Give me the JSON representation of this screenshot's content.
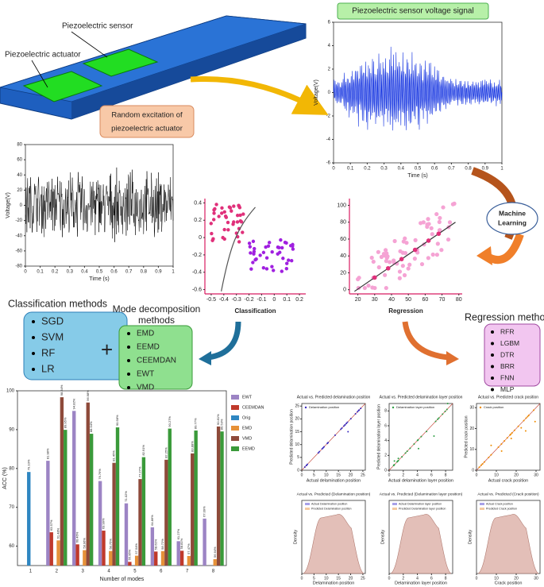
{
  "labels": {
    "sensor": "Piezoelectric sensor",
    "actuator": "Piezoelectric actuator",
    "excitation": [
      "Random excitation of",
      "piezoelectric actuator"
    ],
    "voltage_signal": "Piezoelectric sensor voltage signal",
    "ml": [
      "Machine",
      "Learning"
    ],
    "plus": "+"
  },
  "output_plot": {
    "xlabel": "Time (s)",
    "ylabel": "Voltage(V)",
    "xlim": [
      0,
      1
    ],
    "ylim": [
      -6,
      6
    ],
    "xticks": [
      0,
      0.1,
      0.2,
      0.3,
      0.4,
      0.5,
      0.6,
      0.7,
      0.8,
      0.9,
      1
    ],
    "yticks": [
      -6,
      -4,
      -2,
      0,
      2,
      4,
      6
    ]
  },
  "input_plot": {
    "xlabel": "Time (s)",
    "ylabel": "Voltage(V)",
    "xlim": [
      0,
      1
    ],
    "ylim": [
      -80,
      80
    ],
    "xticks": [
      0,
      0.1,
      0.2,
      0.3,
      0.4,
      0.5,
      0.6,
      0.7,
      0.8,
      0.9,
      1
    ],
    "yticks": [
      -80,
      -60,
      -40,
      -20,
      0,
      20,
      40,
      60,
      80
    ]
  },
  "classification_plot": {
    "title": "Classification",
    "xlim": [
      -0.55,
      0.25
    ],
    "ylim": [
      -0.65,
      0.45
    ],
    "xticks": [
      -0.5,
      -0.4,
      -0.3,
      -0.2,
      -0.1,
      0,
      0.1,
      0.2
    ],
    "yticks": [
      -0.6,
      -0.4,
      -0.2,
      0,
      0.2,
      0.4
    ]
  },
  "regression_plot": {
    "title": "Regression",
    "xlim": [
      15,
      82
    ],
    "ylim": [
      -5,
      108
    ],
    "xticks": [
      20,
      30,
      40,
      50,
      60,
      70,
      80
    ],
    "yticks": [
      0,
      20,
      40,
      60,
      80,
      100
    ]
  },
  "classification_methods": {
    "title": "Classification methods",
    "items": [
      "SGD",
      "SVM",
      "RF",
      "LR"
    ]
  },
  "mode_methods": {
    "title": [
      "Mode decomposition",
      "methods"
    ],
    "items": [
      "EMD",
      "EEMD",
      "CEEMDAN",
      "EWT",
      "VMD"
    ]
  },
  "regression_methods": {
    "title": "Regression methods",
    "items": [
      "RFR",
      "LGBM",
      "DTR",
      "BRR",
      "FNN",
      "MLP"
    ]
  },
  "chart_data": {
    "type": "bar",
    "xlabel": "Number of modes",
    "ylabel": "ACC (%)",
    "categories": [
      "1",
      "2",
      "3",
      "4",
      "5",
      "6",
      "7",
      "8"
    ],
    "ylim": [
      55,
      100
    ],
    "yticks": [
      60,
      70,
      80,
      90,
      100
    ],
    "legend": "top-right",
    "series": [
      {
        "name": "EWT",
        "color": "#9c84c4",
        "values": [
          null,
          81.98,
          94.82,
          76.76,
          71.02,
          64.86,
          61.27,
          67.09
        ],
        "value_labels": [
          null,
          "81.98%",
          "94.82%",
          "76.76%",
          "71.02%",
          "64.86%",
          "61.27%",
          "67.09%"
        ]
      },
      {
        "name": "CEEMDAN",
        "color": "#c0392b",
        "values": [
          null,
          63.57,
          60.46,
          63.99,
          55.95,
          58.61,
          58.81,
          null
        ],
        "value_labels": [
          null,
          "63.57%",
          "60.46%",
          "63.99%",
          "55.95%",
          "58.61%",
          "58.81%",
          null
        ]
      },
      {
        "name": "Orig",
        "color": "#2e86c1",
        "values": [
          79.1,
          null,
          null,
          null,
          null,
          null,
          null,
          null
        ],
        "value_labels": [
          "79.10%",
          null,
          null,
          null,
          null,
          null,
          null,
          null
        ]
      },
      {
        "name": "EMD",
        "color": "#e69138",
        "values": [
          null,
          61.48,
          58.96,
          58.75,
          57.54,
          58.72,
          57.47,
          56.64
        ],
        "value_labels": [
          null,
          "61.48%",
          "58.96%",
          "58.75%",
          "57.54%",
          "58.72%",
          "57.47%",
          "56.64%"
        ]
      },
      {
        "name": "VMD",
        "color": "#8e4a3a",
        "values": [
          null,
          98.34,
          96.98,
          81.45,
          77.27,
          82.25,
          83.88,
          90.81
        ],
        "value_labels": [
          null,
          "98.34%",
          "96.98%",
          "81.45%",
          "77.27%",
          "82.25%",
          "83.88%",
          "90.81%"
        ]
      },
      {
        "name": "EEMD",
        "color": "#3a9a3a",
        "values": [
          null,
          89.95,
          88.94,
          90.58,
          82.91,
          90.27,
          89.77,
          89.53
        ],
        "value_labels": [
          null,
          "89.95%",
          "88.94%",
          "90.58%",
          "82.91%",
          "90.27%",
          "89.77%",
          "89.53%"
        ]
      }
    ]
  },
  "result_plots": [
    {
      "title": "Actual vs. Predicted delamination position",
      "legend": "Delamination position",
      "xlabel": "Actual delamination position",
      "ylabel": "Predicted delamination position",
      "ticks": [
        0,
        5,
        10,
        15,
        20,
        25
      ],
      "lim": [
        0,
        26
      ],
      "density_title": "Actual vs. Predicted (Delamination position)",
      "density_legend": [
        "Actual Delamination position",
        "Predicted Delamination position"
      ],
      "density_xlabel": "Delamination position",
      "density_ylabel": "Density"
    },
    {
      "title": "Actual vs. Predicted delamination layer position",
      "legend": "Delamination layer position",
      "xlabel": "Actual delamination layer position",
      "ylabel": "Predicted delamination layer position",
      "ticks": [
        0,
        2,
        4,
        6,
        8
      ],
      "lim": [
        0,
        9
      ],
      "density_title": "Actual vs. Predicted (Delamination layer position)",
      "density_legend": [
        "Actual Delamination layer position",
        "Predicted Delamination layer position"
      ],
      "density_xlabel": "Delamination layer position",
      "density_ylabel": "Density"
    },
    {
      "title": "Actual vs. Predicted crack position",
      "legend": "Crack position",
      "xlabel": "Actual crack position",
      "ylabel": "Predicted crack position",
      "ticks": [
        0,
        10,
        20,
        30
      ],
      "lim": [
        0,
        32
      ],
      "density_title": "Actual vs. Predicted (Crack position)",
      "density_legend": [
        "Actual Crack position",
        "Predicted Crack position"
      ],
      "density_xlabel": "Crack position",
      "density_ylabel": "Density"
    }
  ]
}
